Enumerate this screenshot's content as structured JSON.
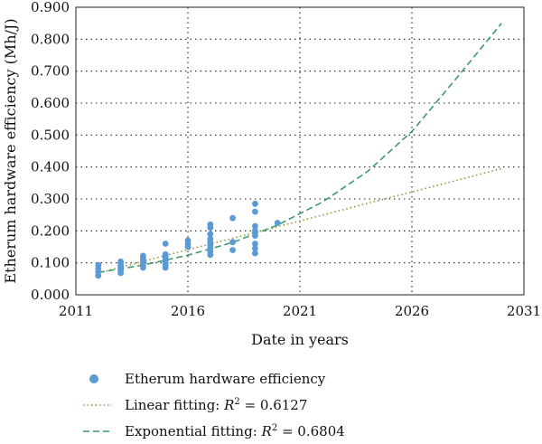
{
  "chart_data": {
    "type": "scatter",
    "xlabel": "Date in years",
    "ylabel": "Etherum hardware efficiency (Mh/J)",
    "xlim": [
      2011,
      2031
    ],
    "ylim": [
      0,
      0.9
    ],
    "xticks": [
      "2011",
      "2016",
      "2021",
      "2026",
      "2031"
    ],
    "yticks": [
      "0.000",
      "0.100",
      "0.200",
      "0.300",
      "0.400",
      "0.500",
      "0.600",
      "0.700",
      "0.800",
      "0.900"
    ],
    "grid": "dotted",
    "legend_position": "below",
    "series": [
      {
        "name": "Etherum hardware efficiency",
        "kind": "scatter",
        "color": "#5b9bd5",
        "points": [
          [
            2012,
            0.06
          ],
          [
            2012,
            0.072
          ],
          [
            2012,
            0.082
          ],
          [
            2012,
            0.093
          ],
          [
            2013,
            0.068
          ],
          [
            2013,
            0.076
          ],
          [
            2013,
            0.083
          ],
          [
            2013,
            0.09
          ],
          [
            2013,
            0.098
          ],
          [
            2013,
            0.104
          ],
          [
            2014,
            0.085
          ],
          [
            2014,
            0.092
          ],
          [
            2014,
            0.098
          ],
          [
            2014,
            0.104
          ],
          [
            2014,
            0.11
          ],
          [
            2014,
            0.118
          ],
          [
            2014,
            0.122
          ],
          [
            2015,
            0.085
          ],
          [
            2015,
            0.093
          ],
          [
            2015,
            0.1
          ],
          [
            2015,
            0.107
          ],
          [
            2015,
            0.113
          ],
          [
            2015,
            0.12
          ],
          [
            2015,
            0.127
          ],
          [
            2015,
            0.16
          ],
          [
            2016,
            0.15
          ],
          [
            2016,
            0.16
          ],
          [
            2016,
            0.17
          ],
          [
            2017,
            0.125
          ],
          [
            2017,
            0.135
          ],
          [
            2017,
            0.145
          ],
          [
            2017,
            0.155
          ],
          [
            2017,
            0.165
          ],
          [
            2017,
            0.175
          ],
          [
            2017,
            0.19
          ],
          [
            2017,
            0.21
          ],
          [
            2017,
            0.22
          ],
          [
            2018,
            0.14
          ],
          [
            2018,
            0.165
          ],
          [
            2018,
            0.24
          ],
          [
            2019,
            0.13
          ],
          [
            2019,
            0.145
          ],
          [
            2019,
            0.16
          ],
          [
            2019,
            0.185
          ],
          [
            2019,
            0.2
          ],
          [
            2019,
            0.215
          ],
          [
            2019,
            0.26
          ],
          [
            2019,
            0.285
          ],
          [
            2020,
            0.225
          ]
        ]
      },
      {
        "name_prefix": "Linear fitting: ",
        "name_r2": "R",
        "name_sup": "2",
        "name_value": " = 0.6127",
        "kind": "line",
        "style": "dotted",
        "color": "#8a9a3c",
        "x": [
          2012,
          2015,
          2018,
          2021,
          2024,
          2027,
          2030
        ],
        "y": [
          0.068,
          0.123,
          0.177,
          0.231,
          0.286,
          0.34,
          0.395
        ]
      },
      {
        "name_prefix": "Exponential fitting: ",
        "name_r2": "R",
        "name_sup": "2",
        "name_value": " = 0.6804",
        "kind": "line",
        "style": "dashed",
        "color": "#3a9a6a",
        "x": [
          2012,
          2014,
          2016,
          2018,
          2020,
          2022,
          2024,
          2026,
          2028,
          2030
        ],
        "y": [
          0.07,
          0.093,
          0.124,
          0.164,
          0.218,
          0.29,
          0.385,
          0.511,
          0.679,
          0.85
        ]
      }
    ]
  }
}
